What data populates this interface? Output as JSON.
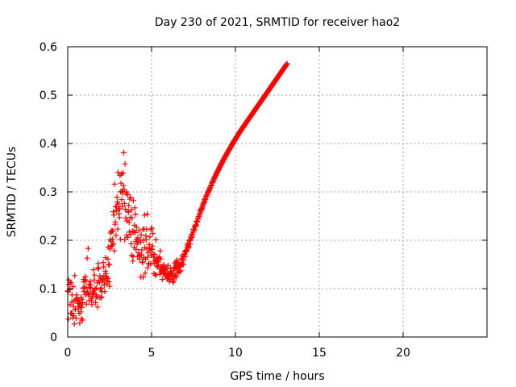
{
  "chart_data": {
    "type": "scatter",
    "title": "Day 230 of 2021, SRMTID for receiver hao2",
    "xlabel": "GPS time / hours",
    "ylabel": "SRMTID / TECUs",
    "xlim": [
      0,
      25
    ],
    "ylim": [
      0,
      0.6
    ],
    "xticks": [
      0,
      5,
      10,
      15,
      20
    ],
    "xtick_labels": [
      "0",
      "5",
      "10",
      "15",
      "20"
    ],
    "yticks": [
      0,
      0.1,
      0.2,
      0.3,
      0.4,
      0.5,
      0.6
    ],
    "ytick_labels": [
      "0",
      "0.1",
      "0.2",
      "0.3",
      "0.4",
      "0.5",
      "0.6"
    ],
    "grid": true,
    "marker": "+",
    "color": "#ff0000",
    "x_start_hours": 0,
    "x_step_hours": 0.02,
    "series": [
      {
        "name": "SRMTID",
        "y": [
          0.095,
          0.094,
          0.037,
          0.118,
          0.109,
          0.098,
          0.098,
          0.067,
          0.113,
          0.049,
          0.112,
          0.049,
          0.072,
          0.087,
          0.049,
          0.04,
          0.104,
          0.063,
          0.044,
          0.075,
          0.027,
          0.127,
          0.057,
          0.057,
          0.077,
          0.039,
          0.08,
          0.087,
          0.08,
          0.076,
          0.07,
          0.058,
          0.075,
          0.063,
          0.049,
          0.069,
          0.029,
          0.064,
          0.068,
          0.052,
          0.082,
          0.038,
          0.061,
          0.078,
          0.035,
          0.071,
          0.101,
          0.119,
          0.114,
          0.094,
          0.103,
          0.119,
          0.088,
          0.125,
          0.116,
          0.101,
          0.068,
          0.089,
          0.163,
          0.093,
          0.093,
          0.183,
          0.088,
          0.109,
          0.075,
          0.087,
          0.103,
          0.115,
          0.101,
          0.108,
          0.079,
          0.075,
          0.067,
          0.087,
          0.083,
          0.095,
          0.09,
          0.139,
          0.092,
          0.118,
          0.128,
          0.099,
          0.1,
          0.071,
          0.083,
          0.087,
          0.101,
          0.083,
          0.112,
          0.062,
          0.143,
          0.152,
          0.141,
          0.116,
          0.082,
          0.113,
          0.126,
          0.098,
          0.122,
          0.081,
          0.101,
          0.083,
          0.094,
          0.113,
          0.119,
          0.12,
          0.154,
          0.145,
          0.127,
          0.107,
          0.094,
          0.116,
          0.136,
          0.164,
          0.131,
          0.126,
          0.123,
          0.11,
          0.116,
          0.121,
          0.161,
          0.186,
          0.149,
          0.114,
          0.15,
          0.105,
          0.182,
          0.201,
          0.215,
          0.198,
          0.218,
          0.188,
          0.22,
          0.19,
          0.202,
          0.219,
          0.259,
          0.193,
          0.252,
          0.178,
          0.316,
          0.233,
          0.238,
          0.27,
          0.21,
          0.269,
          0.261,
          0.289,
          0.279,
          0.223,
          0.34,
          0.265,
          0.275,
          0.255,
          0.247,
          0.265,
          0.334,
          0.202,
          0.3,
          0.318,
          0.337,
          0.284,
          0.302,
          0.27,
          0.297,
          0.339,
          0.313,
          0.381,
          0.305,
          0.276,
          0.201,
          0.358,
          0.264,
          0.246,
          0.3,
          0.21,
          0.297,
          0.24,
          0.294,
          0.206,
          0.26,
          0.258,
          0.272,
          0.237,
          0.217,
          0.285,
          0.247,
          0.289,
          0.212,
          0.193,
          0.263,
          0.169,
          0.246,
          0.219,
          0.157,
          0.166,
          0.282,
          0.218,
          0.185,
          0.231,
          0.267,
          0.216,
          0.254,
          0.197,
          0.181,
          0.227,
          0.201,
          0.192,
          0.166,
          0.205,
          0.198,
          0.174,
          0.22,
          0.167,
          0.161,
          0.169,
          0.201,
          0.196,
          0.124,
          0.211,
          0.17,
          0.18,
          0.155,
          0.154,
          0.223,
          0.124,
          0.2,
          0.164,
          0.223,
          0.252,
          0.185,
          0.132,
          0.161,
          0.209,
          0.201,
          0.223,
          0.182,
          0.254,
          0.143,
          0.165,
          0.174,
          0.151,
          0.152,
          0.191,
          0.184,
          0.207,
          0.178,
          0.151,
          0.222,
          0.169,
          0.182,
          0.225,
          0.181,
          0.188,
          0.214,
          0.171,
          0.165,
          0.131,
          0.153,
          0.171,
          0.159,
          0.128,
          0.156,
          0.201,
          0.129,
          0.157,
          0.164,
          0.145,
          0.147,
          0.155,
          0.15,
          0.163,
          0.162,
          0.165,
          0.141,
          0.13,
          0.178,
          0.161,
          0.145,
          0.134,
          0.138,
          0.136,
          0.119,
          0.146,
          0.139,
          0.132,
          0.133,
          0.149,
          0.143,
          0.14,
          0.138,
          0.125,
          0.13,
          0.141,
          0.128,
          0.142,
          0.121,
          0.132,
          0.121,
          0.148,
          0.128,
          0.129,
          0.125,
          0.115,
          0.131,
          0.119,
          0.142,
          0.13,
          0.136,
          0.13,
          0.127,
          0.132,
          0.125,
          0.12,
          0.113,
          0.137,
          0.116,
          0.144,
          0.126,
          0.153,
          0.142,
          0.127,
          0.148,
          0.155,
          0.124,
          0.14,
          0.159,
          0.147,
          0.133,
          0.132,
          0.143,
          0.152,
          0.151,
          0.147,
          0.135,
          0.149,
          0.146,
          0.137,
          0.149,
          0.162,
          0.153,
          0.168,
          0.15,
          0.161,
          0.158,
          0.15,
          0.166,
          0.171,
          0.171,
          0.172,
          0.176,
          0.167,
          0.179,
          0.178,
          0.177,
          0.18,
          0.185,
          0.19,
          0.194,
          0.189,
          0.184,
          0.187,
          0.192,
          0.199,
          0.201,
          0.192,
          0.2,
          0.207,
          0.205,
          0.212,
          0.211,
          0.207,
          0.212,
          0.217,
          0.223,
          0.217,
          0.221,
          0.221,
          0.222,
          0.228,
          0.229,
          0.231,
          0.229,
          0.232,
          0.238,
          0.24,
          0.238,
          0.239,
          0.245,
          0.244,
          0.249,
          0.249,
          0.25,
          0.254,
          0.255,
          0.261,
          0.258,
          0.262,
          0.263,
          0.265,
          0.266,
          0.268,
          0.272,
          0.271,
          0.275,
          0.277,
          0.278,
          0.278,
          0.281,
          0.284,
          0.286,
          0.285,
          0.29,
          0.291,
          0.294,
          0.294,
          0.294,
          0.298,
          0.3,
          0.299,
          0.301,
          0.304,
          0.303,
          0.306,
          0.309,
          0.309,
          0.312,
          0.313,
          0.314,
          0.314,
          0.318,
          0.319,
          0.322,
          0.321,
          0.323,
          0.326,
          0.326,
          0.329,
          0.33,
          0.331,
          0.332,
          0.334,
          0.335,
          0.337,
          0.339,
          0.34,
          0.341,
          0.343,
          0.344,
          0.346,
          0.346,
          0.348,
          0.35,
          0.351,
          0.352,
          0.354,
          0.355,
          0.357,
          0.358,
          0.359,
          0.36,
          0.362,
          0.363,
          0.365,
          0.366,
          0.367,
          0.368,
          0.37,
          0.371,
          0.372,
          0.373,
          0.375,
          0.376,
          0.377,
          0.378,
          0.38,
          0.381,
          0.382,
          0.383,
          0.385,
          0.386,
          0.387,
          0.388,
          0.389,
          0.391,
          0.392,
          0.393,
          0.394,
          0.395,
          0.397,
          0.398,
          0.399,
          0.4,
          0.401,
          0.402,
          0.404,
          0.405,
          0.406,
          0.407,
          0.408,
          0.409,
          0.41,
          0.412,
          0.413,
          0.414,
          0.415,
          0.416,
          0.417,
          0.418,
          0.419,
          0.421,
          0.422,
          0.423,
          0.424,
          0.425,
          0.426,
          0.427,
          0.428,
          0.429,
          0.43,
          0.431,
          0.432,
          0.433,
          0.434,
          0.435,
          0.436,
          0.437,
          0.438,
          0.439,
          0.44,
          0.441,
          0.442,
          0.443,
          0.444,
          0.445,
          0.446,
          0.447,
          0.448,
          0.449,
          0.45,
          0.451,
          0.452,
          0.453,
          0.454,
          0.455,
          0.456,
          0.457,
          0.458,
          0.459,
          0.46,
          0.461,
          0.462,
          0.463,
          0.464,
          0.465,
          0.466,
          0.467,
          0.468,
          0.469,
          0.47,
          0.471,
          0.472,
          0.473,
          0.474,
          0.475,
          0.476,
          0.477,
          0.478,
          0.479,
          0.48,
          0.481,
          0.482,
          0.483,
          0.484,
          0.485,
          0.486,
          0.487,
          0.488,
          0.489,
          0.49,
          0.491,
          0.492,
          0.493,
          0.494,
          0.495,
          0.496,
          0.497,
          0.498,
          0.499,
          0.5,
          0.501,
          0.502,
          0.503,
          0.504,
          0.505,
          0.506,
          0.507,
          0.508,
          0.509,
          0.51,
          0.511,
          0.512,
          0.513,
          0.514,
          0.515,
          0.516,
          0.517,
          0.518,
          0.519,
          0.52,
          0.521,
          0.522,
          0.523,
          0.524,
          0.525,
          0.526,
          0.527,
          0.528,
          0.529,
          0.53,
          0.531,
          0.532,
          0.533,
          0.534,
          0.535,
          0.536,
          0.537,
          0.538,
          0.539,
          0.54,
          0.541,
          0.542,
          0.543,
          0.544,
          0.545,
          0.546,
          0.547,
          0.548,
          0.549,
          0.55,
          0.551,
          0.552,
          0.553,
          0.554,
          0.555,
          0.556,
          0.557,
          0.558,
          0.559,
          0.56,
          0.561,
          0.562,
          0.563,
          0.564,
          0.565
        ]
      }
    ]
  }
}
